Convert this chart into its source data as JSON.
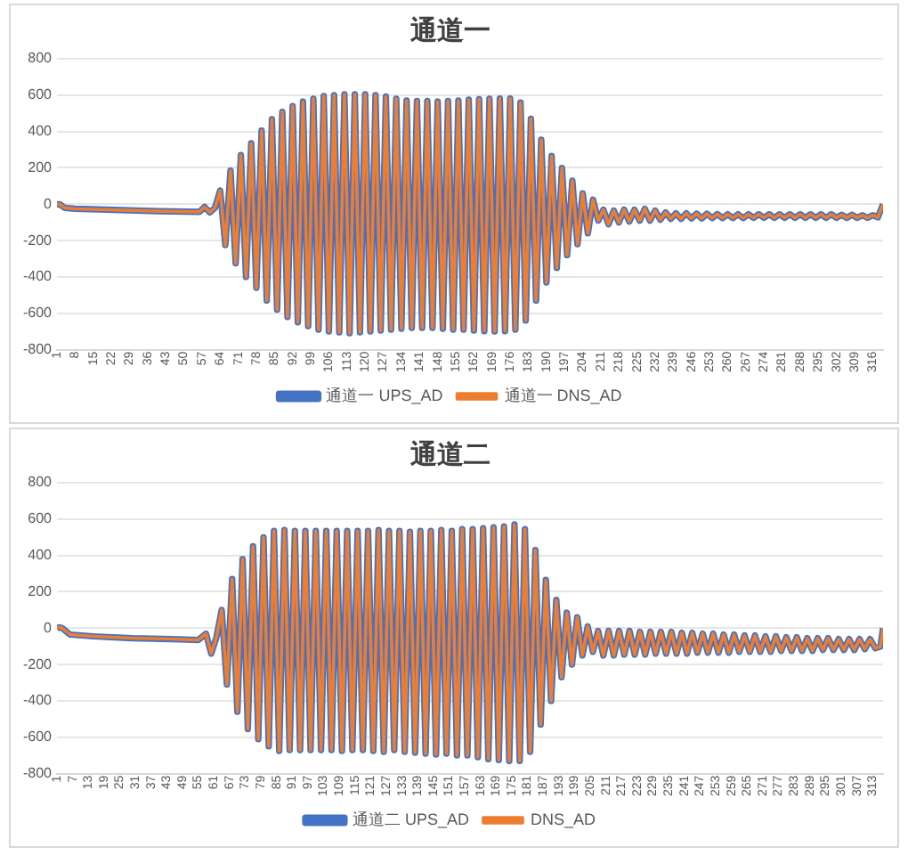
{
  "chart_data": [
    {
      "type": "line",
      "title": "通道一",
      "grid": "y",
      "legend": "bottom",
      "marker": "none",
      "line_style": "solid",
      "xlim": [
        1,
        320
      ],
      "ylim": [
        -800,
        800
      ],
      "yticks": [
        -800,
        -600,
        -400,
        -200,
        0,
        200,
        400,
        600,
        800
      ],
      "xticks": [
        1,
        8,
        15,
        22,
        29,
        36,
        43,
        50,
        57,
        64,
        71,
        78,
        85,
        92,
        99,
        106,
        113,
        120,
        127,
        134,
        141,
        148,
        155,
        162,
        169,
        176,
        183,
        190,
        197,
        204,
        211,
        218,
        225,
        232,
        239,
        246,
        253,
        260,
        267,
        274,
        281,
        288,
        295,
        302,
        309,
        316
      ],
      "x": [
        1,
        2,
        4,
        8,
        20,
        40,
        56,
        58,
        60,
        62,
        64,
        66,
        68,
        70,
        72,
        74,
        76,
        78,
        80,
        82,
        84,
        86,
        88,
        90,
        92,
        94,
        96,
        98,
        100,
        102,
        104,
        106,
        108,
        110,
        112,
        114,
        116,
        118,
        120,
        122,
        124,
        126,
        128,
        130,
        132,
        134,
        136,
        138,
        140,
        142,
        144,
        146,
        148,
        150,
        152,
        154,
        156,
        158,
        160,
        162,
        164,
        166,
        168,
        170,
        172,
        174,
        176,
        178,
        180,
        182,
        184,
        186,
        188,
        190,
        192,
        194,
        196,
        198,
        200,
        202,
        204,
        206,
        208,
        210,
        212,
        214,
        216,
        218,
        220,
        222,
        224,
        226,
        228,
        230,
        232,
        234,
        236,
        238,
        240,
        242,
        244,
        246,
        248,
        250,
        252,
        254,
        256,
        258,
        260,
        262,
        264,
        266,
        268,
        270,
        272,
        274,
        276,
        278,
        280,
        282,
        284,
        286,
        288,
        290,
        292,
        294,
        296,
        298,
        300,
        302,
        304,
        306,
        308,
        310,
        312,
        314,
        316,
        318,
        320
      ],
      "series": [
        {
          "name": "通道一 UPS_AD",
          "color": "#4472c4",
          "values": [
            0,
            0,
            -20,
            -25,
            -30,
            -38,
            -42,
            -15,
            -45,
            -20,
            75,
            -225,
            185,
            -325,
            270,
            -400,
            335,
            -460,
            405,
            -530,
            468,
            -580,
            508,
            -620,
            540,
            -650,
            565,
            -670,
            580,
            -690,
            595,
            -700,
            600,
            -705,
            605,
            -710,
            605,
            -705,
            605,
            -700,
            600,
            -695,
            592,
            -690,
            580,
            -685,
            570,
            -680,
            568,
            -680,
            568,
            -680,
            565,
            -685,
            568,
            -690,
            570,
            -690,
            575,
            -695,
            578,
            -698,
            580,
            -700,
            582,
            -698,
            582,
            -690,
            560,
            -640,
            470,
            -530,
            355,
            -430,
            265,
            -350,
            200,
            -280,
            130,
            -220,
            60,
            -160,
            25,
            -90,
            -30,
            -110,
            -35,
            -100,
            -30,
            -95,
            -30,
            -90,
            -25,
            -90,
            -35,
            -85,
            -45,
            -80,
            -50,
            -80,
            -50,
            -78,
            -52,
            -78,
            -52,
            -76,
            -54,
            -76,
            -55,
            -76,
            -55,
            -76,
            -55,
            -75,
            -55,
            -75,
            -55,
            -75,
            -55,
            -75,
            -55,
            -75,
            -55,
            -75,
            -55,
            -75,
            -55,
            -75,
            -55,
            -75,
            -58,
            -75,
            -58,
            -75,
            -60,
            -75,
            -60,
            -72,
            0
          ]
        },
        {
          "name": "通道一 DNS_AD",
          "color": "#ed7d31",
          "values": [
            0,
            0,
            -20,
            -25,
            -30,
            -38,
            -42,
            -15,
            -45,
            -20,
            75,
            -225,
            185,
            -325,
            270,
            -400,
            335,
            -460,
            405,
            -530,
            468,
            -580,
            508,
            -620,
            540,
            -650,
            565,
            -670,
            580,
            -690,
            595,
            -700,
            600,
            -705,
            605,
            -710,
            605,
            -705,
            605,
            -700,
            600,
            -695,
            592,
            -690,
            580,
            -685,
            570,
            -680,
            568,
            -680,
            568,
            -680,
            565,
            -685,
            568,
            -690,
            570,
            -690,
            575,
            -695,
            578,
            -698,
            580,
            -700,
            582,
            -698,
            582,
            -690,
            560,
            -640,
            470,
            -530,
            355,
            -430,
            265,
            -350,
            200,
            -280,
            130,
            -220,
            60,
            -160,
            25,
            -90,
            -30,
            -110,
            -35,
            -100,
            -30,
            -95,
            -30,
            -90,
            -25,
            -90,
            -35,
            -85,
            -45,
            -80,
            -50,
            -80,
            -50,
            -78,
            -52,
            -78,
            -52,
            -76,
            -54,
            -76,
            -55,
            -76,
            -55,
            -76,
            -55,
            -75,
            -55,
            -75,
            -55,
            -75,
            -55,
            -75,
            -55,
            -75,
            -55,
            -75,
            -55,
            -75,
            -55,
            -75,
            -55,
            -75,
            -58,
            -75,
            -58,
            -75,
            -60,
            -75,
            -60,
            -72,
            0
          ]
        }
      ]
    },
    {
      "type": "line",
      "title": "通道二",
      "grid": "y",
      "legend": "bottom",
      "marker": "none",
      "line_style": "solid",
      "xlim": [
        1,
        317
      ],
      "ylim": [
        -800,
        800
      ],
      "yticks": [
        -800,
        -600,
        -400,
        -200,
        0,
        200,
        400,
        600,
        800
      ],
      "xticks": [
        1,
        7,
        13,
        19,
        25,
        31,
        37,
        43,
        49,
        55,
        61,
        67,
        73,
        79,
        85,
        91,
        97,
        103,
        109,
        115,
        121,
        127,
        133,
        139,
        145,
        151,
        157,
        163,
        169,
        175,
        181,
        187,
        193,
        199,
        205,
        211,
        217,
        223,
        229,
        235,
        241,
        247,
        253,
        259,
        265,
        271,
        277,
        283,
        289,
        295,
        301,
        307,
        313
      ],
      "x": [
        1,
        2,
        3,
        6,
        15,
        30,
        45,
        55,
        58,
        60,
        62,
        64,
        66,
        68,
        70,
        72,
        74,
        76,
        78,
        80,
        82,
        84,
        86,
        88,
        90,
        92,
        94,
        96,
        98,
        100,
        102,
        104,
        106,
        108,
        110,
        112,
        114,
        116,
        118,
        120,
        122,
        124,
        126,
        128,
        130,
        132,
        134,
        136,
        138,
        140,
        142,
        144,
        146,
        148,
        150,
        152,
        154,
        156,
        158,
        160,
        162,
        164,
        166,
        168,
        170,
        172,
        174,
        176,
        178,
        180,
        182,
        184,
        186,
        188,
        190,
        192,
        194,
        196,
        198,
        200,
        202,
        204,
        206,
        208,
        210,
        212,
        214,
        216,
        218,
        220,
        222,
        224,
        226,
        228,
        230,
        232,
        234,
        236,
        238,
        240,
        242,
        244,
        246,
        248,
        250,
        252,
        254,
        256,
        258,
        260,
        262,
        264,
        266,
        268,
        270,
        272,
        274,
        276,
        278,
        280,
        282,
        284,
        286,
        288,
        290,
        292,
        294,
        296,
        298,
        300,
        302,
        304,
        306,
        308,
        310,
        312,
        314,
        316,
        317
      ],
      "series": [
        {
          "name": "通道二 UPS_AD",
          "color": "#4472c4",
          "values": [
            0,
            5,
            0,
            -35,
            -45,
            -55,
            -60,
            -65,
            -30,
            -140,
            -50,
            100,
            -310,
            270,
            -460,
            380,
            -555,
            450,
            -610,
            500,
            -650,
            535,
            -675,
            540,
            -670,
            535,
            -670,
            535,
            -670,
            535,
            -670,
            535,
            -670,
            535,
            -675,
            535,
            -670,
            535,
            -670,
            535,
            -675,
            540,
            -680,
            535,
            -670,
            535,
            -680,
            530,
            -685,
            535,
            -690,
            535,
            -695,
            540,
            -690,
            535,
            -700,
            545,
            -700,
            545,
            -710,
            550,
            -720,
            555,
            -725,
            560,
            -730,
            570,
            -730,
            545,
            -680,
            430,
            -530,
            265,
            -400,
            155,
            -270,
            85,
            -200,
            60,
            -150,
            10,
            -130,
            -15,
            -150,
            -15,
            -150,
            -15,
            -145,
            -15,
            -145,
            -20,
            -145,
            -20,
            -140,
            -20,
            -140,
            -20,
            -140,
            -25,
            -140,
            -25,
            -135,
            -30,
            -135,
            -30,
            -135,
            -35,
            -135,
            -35,
            -130,
            -40,
            -130,
            -40,
            -130,
            -45,
            -130,
            -45,
            -125,
            -50,
            -125,
            -50,
            -125,
            -55,
            -125,
            -55,
            -120,
            -55,
            -120,
            -60,
            -120,
            -60,
            -120,
            -60,
            -115,
            -60,
            -110,
            -100,
            0
          ]
        },
        {
          "name": "DNS_AD",
          "color": "#ed7d31",
          "values": [
            0,
            5,
            0,
            -35,
            -45,
            -55,
            -60,
            -65,
            -30,
            -140,
            -50,
            100,
            -310,
            270,
            -460,
            380,
            -555,
            450,
            -610,
            500,
            -650,
            535,
            -675,
            540,
            -670,
            535,
            -670,
            535,
            -670,
            535,
            -670,
            535,
            -670,
            535,
            -675,
            535,
            -670,
            535,
            -670,
            535,
            -675,
            540,
            -680,
            535,
            -670,
            535,
            -680,
            530,
            -685,
            535,
            -690,
            535,
            -695,
            540,
            -690,
            535,
            -700,
            545,
            -700,
            545,
            -710,
            550,
            -720,
            555,
            -725,
            560,
            -730,
            570,
            -730,
            545,
            -680,
            430,
            -530,
            265,
            -400,
            155,
            -270,
            85,
            -200,
            60,
            -150,
            10,
            -130,
            -15,
            -150,
            -15,
            -150,
            -15,
            -145,
            -15,
            -145,
            -20,
            -145,
            -20,
            -140,
            -20,
            -140,
            -20,
            -140,
            -25,
            -140,
            -25,
            -135,
            -30,
            -135,
            -30,
            -135,
            -35,
            -135,
            -35,
            -130,
            -40,
            -130,
            -40,
            -130,
            -45,
            -130,
            -45,
            -125,
            -50,
            -125,
            -50,
            -125,
            -55,
            -125,
            -55,
            -120,
            -55,
            -120,
            -60,
            -120,
            -60,
            -120,
            -60,
            -115,
            -60,
            -110,
            -100,
            0
          ]
        }
      ]
    }
  ]
}
